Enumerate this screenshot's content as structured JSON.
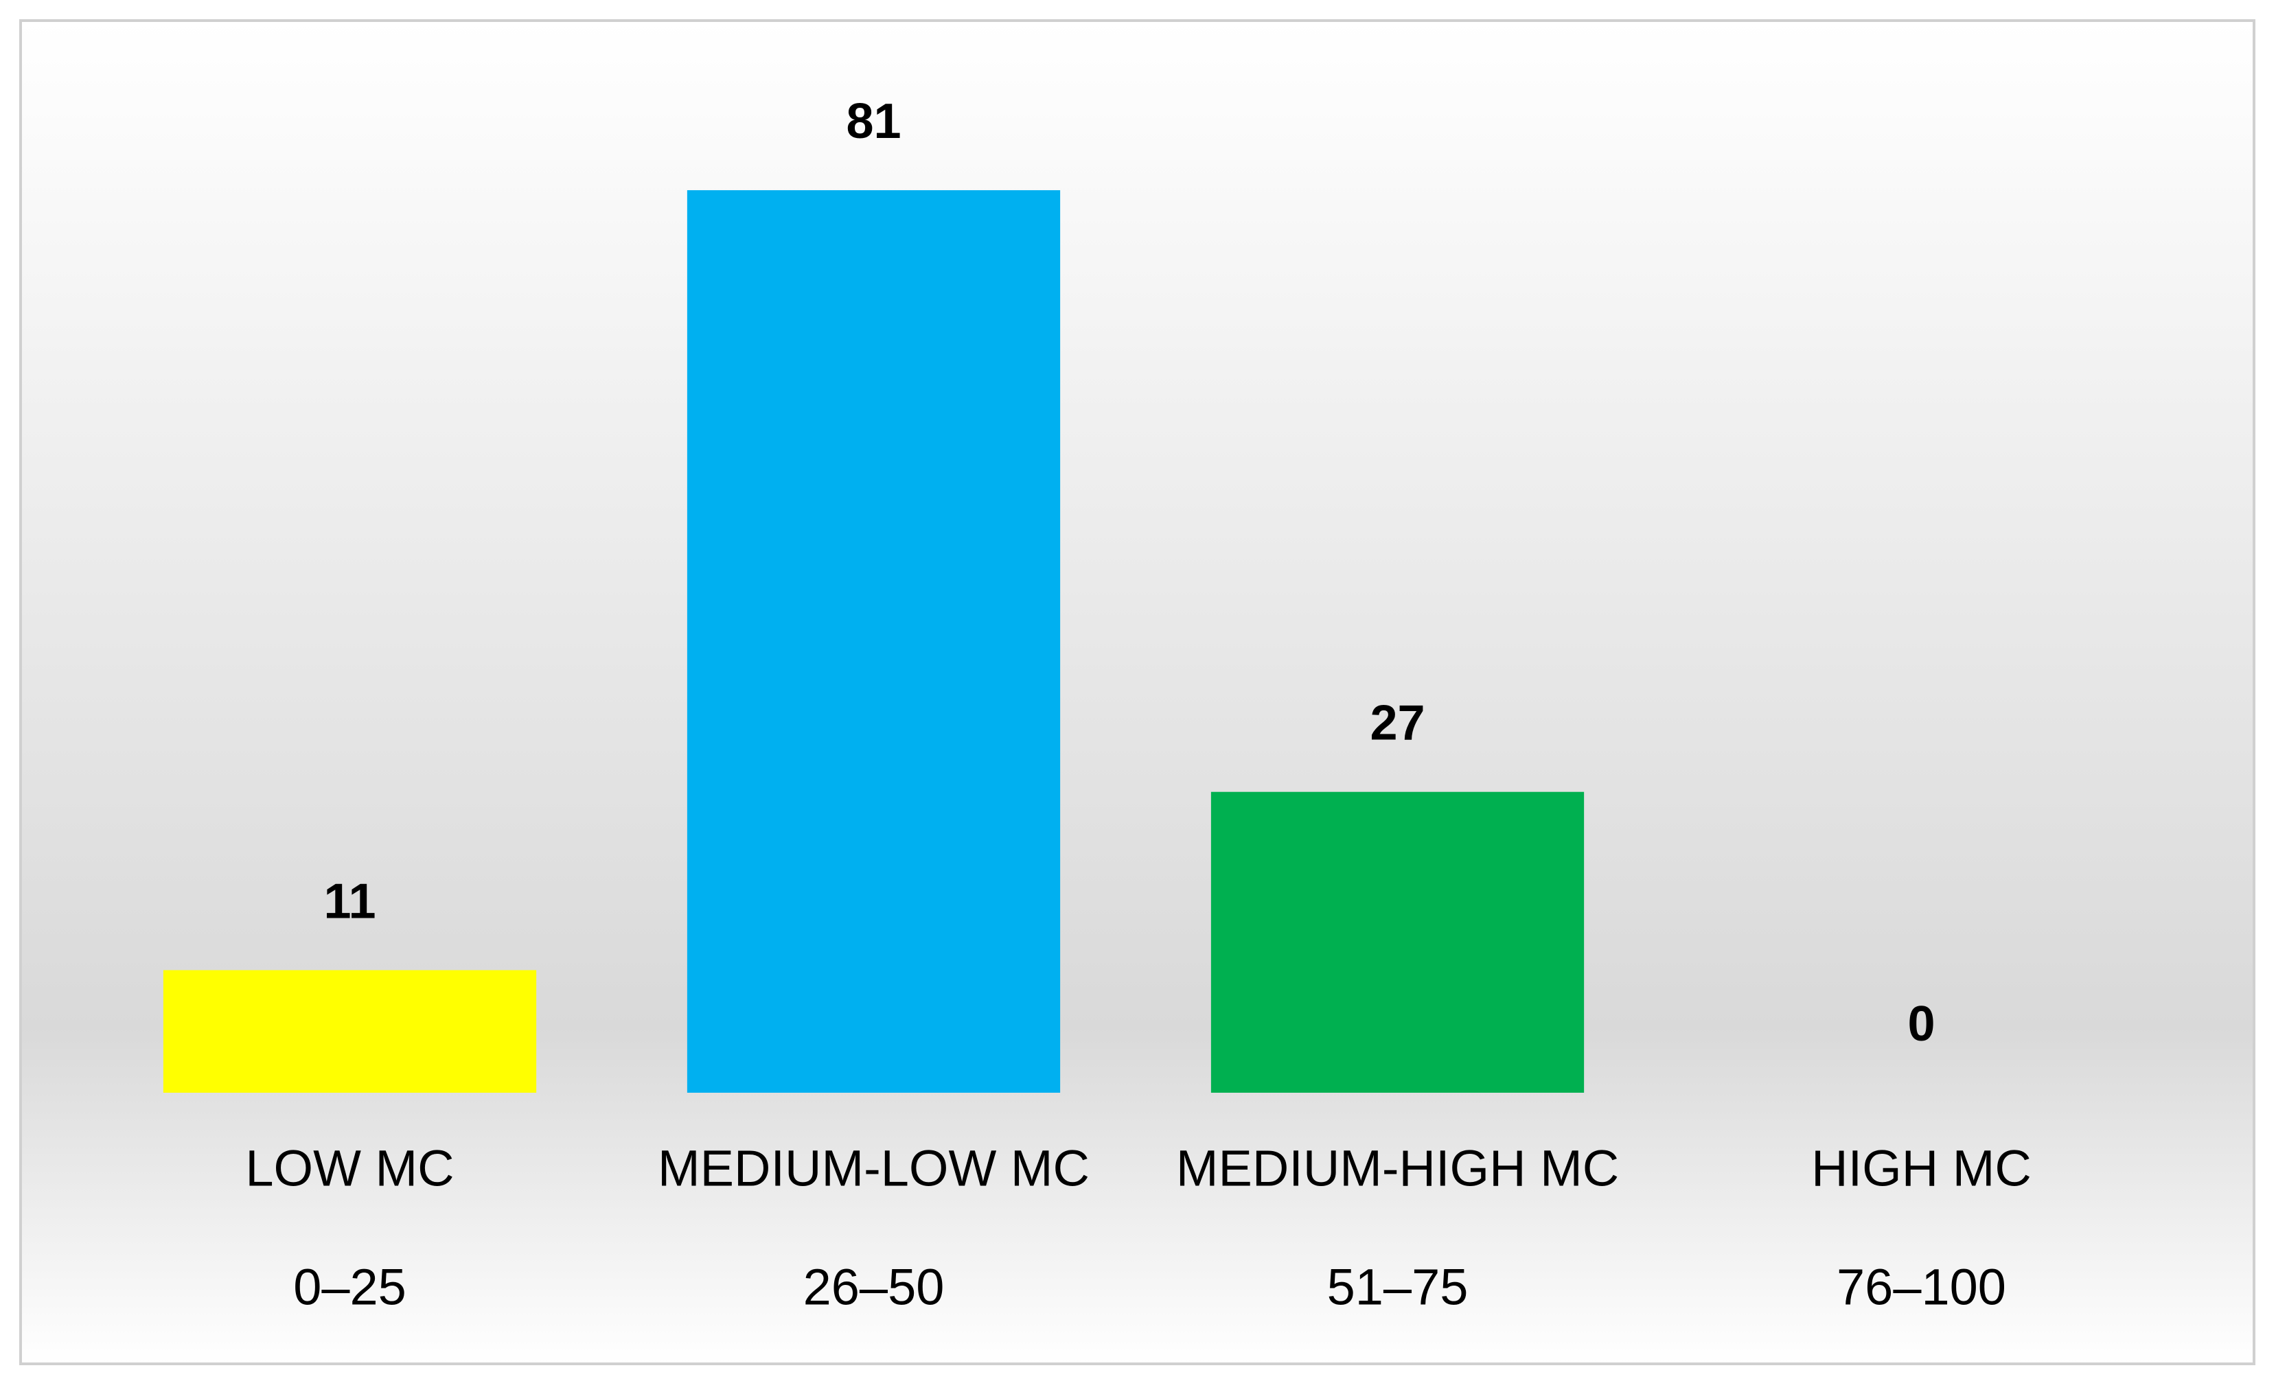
{
  "chart_data": {
    "type": "bar",
    "categories": [
      [
        "LOW MC",
        "0–25"
      ],
      [
        "MEDIUM-LOW MC",
        "26–50"
      ],
      [
        "MEDIUM-HIGH MC",
        "51–75"
      ],
      [
        "HIGH MC",
        "76–100"
      ]
    ],
    "values": [
      11,
      81,
      27,
      0
    ],
    "colors": [
      "#ffff00",
      "#00b0f0",
      "#00b050",
      "#7f7f7f"
    ],
    "ylim": [
      0,
      90
    ]
  }
}
